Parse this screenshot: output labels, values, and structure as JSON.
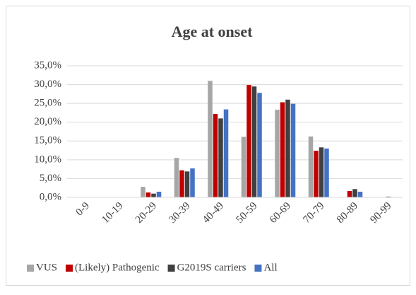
{
  "chart_data": {
    "type": "bar",
    "title": "Age at onset",
    "categories": [
      "0-9",
      "10-19",
      "20-29",
      "30-39",
      "40-49",
      "50-59",
      "60-69",
      "70-79",
      "80-89",
      "90-99"
    ],
    "series": [
      {
        "name": "VUS",
        "color": "#a6a6a6",
        "values": [
          0,
          0,
          2.8,
          10.5,
          31.0,
          16.1,
          23.3,
          16.2,
          0,
          0
        ]
      },
      {
        "name": "(Likely) Pathogenic",
        "color": "#c00000",
        "values": [
          0,
          0,
          1.3,
          7.2,
          22.2,
          29.9,
          25.3,
          12.4,
          1.7,
          0
        ]
      },
      {
        "name": "G2019S carriers",
        "color": "#404040",
        "values": [
          0,
          0,
          1.0,
          6.9,
          21.0,
          29.5,
          26.0,
          13.3,
          2.2,
          0.2
        ]
      },
      {
        "name": "All",
        "color": "#4472c4",
        "values": [
          0,
          0,
          1.5,
          7.7,
          23.4,
          27.8,
          24.9,
          13.0,
          1.5,
          0.1
        ]
      }
    ],
    "ylim": [
      0,
      35
    ],
    "yticks": [
      {
        "value": 0,
        "label": "0,0%"
      },
      {
        "value": 5,
        "label": "5,0%"
      },
      {
        "value": 10,
        "label": "10,0%"
      },
      {
        "value": 15,
        "label": "15,0%"
      },
      {
        "value": 20,
        "label": "20,0%"
      },
      {
        "value": 25,
        "label": "25,0%"
      },
      {
        "value": 30,
        "label": "30,0%"
      },
      {
        "value": 35,
        "label": "35,0%"
      }
    ],
    "grid": true,
    "legend": "bottom"
  }
}
